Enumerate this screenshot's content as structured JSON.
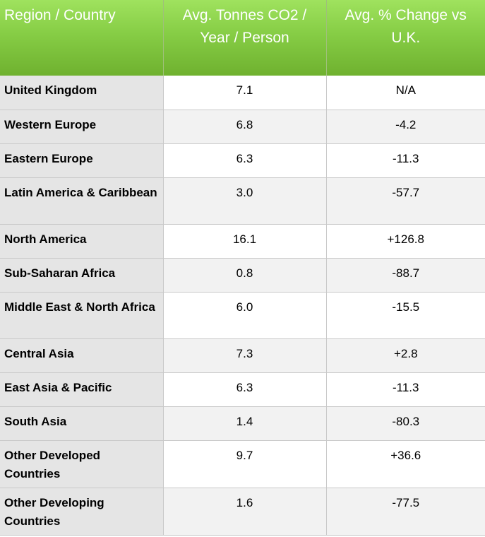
{
  "table": {
    "headers": [
      "Region / Country",
      "Avg. Tonnes CO2 / Year / Person",
      "Avg. % Change vs U.K."
    ],
    "rows": [
      {
        "region": "United Kingdom",
        "tonnes": "7.1",
        "change": "N/A"
      },
      {
        "region": "Western Europe",
        "tonnes": "6.8",
        "change": "-4.2"
      },
      {
        "region": "Eastern Europe",
        "tonnes": "6.3",
        "change": "-11.3"
      },
      {
        "region": "Latin America & Caribbean",
        "tonnes": "3.0",
        "change": "-57.7"
      },
      {
        "region": "North America",
        "tonnes": "16.1",
        "change": "+126.8"
      },
      {
        "region": "Sub-Saharan Africa",
        "tonnes": "0.8",
        "change": "-88.7"
      },
      {
        "region": "Middle East & North Africa",
        "tonnes": "6.0",
        "change": "-15.5"
      },
      {
        "region": "Central Asia",
        "tonnes": "7.3",
        "change": "+2.8"
      },
      {
        "region": "East Asia & Pacific",
        "tonnes": "6.3",
        "change": "-11.3"
      },
      {
        "region": "South Asia",
        "tonnes": "1.4",
        "change": "-80.3"
      },
      {
        "region": "Other Developed Countries",
        "tonnes": "9.7",
        "change": "+36.6"
      },
      {
        "region": "Other Developing Countries",
        "tonnes": "1.6",
        "change": "-77.5"
      }
    ]
  },
  "colors": {
    "header_green_top": "#9fe25e",
    "header_green_bottom": "#6fb12f",
    "label_column_bg": "#e5e5e5",
    "stripe_bg": "#f2f2f2"
  }
}
